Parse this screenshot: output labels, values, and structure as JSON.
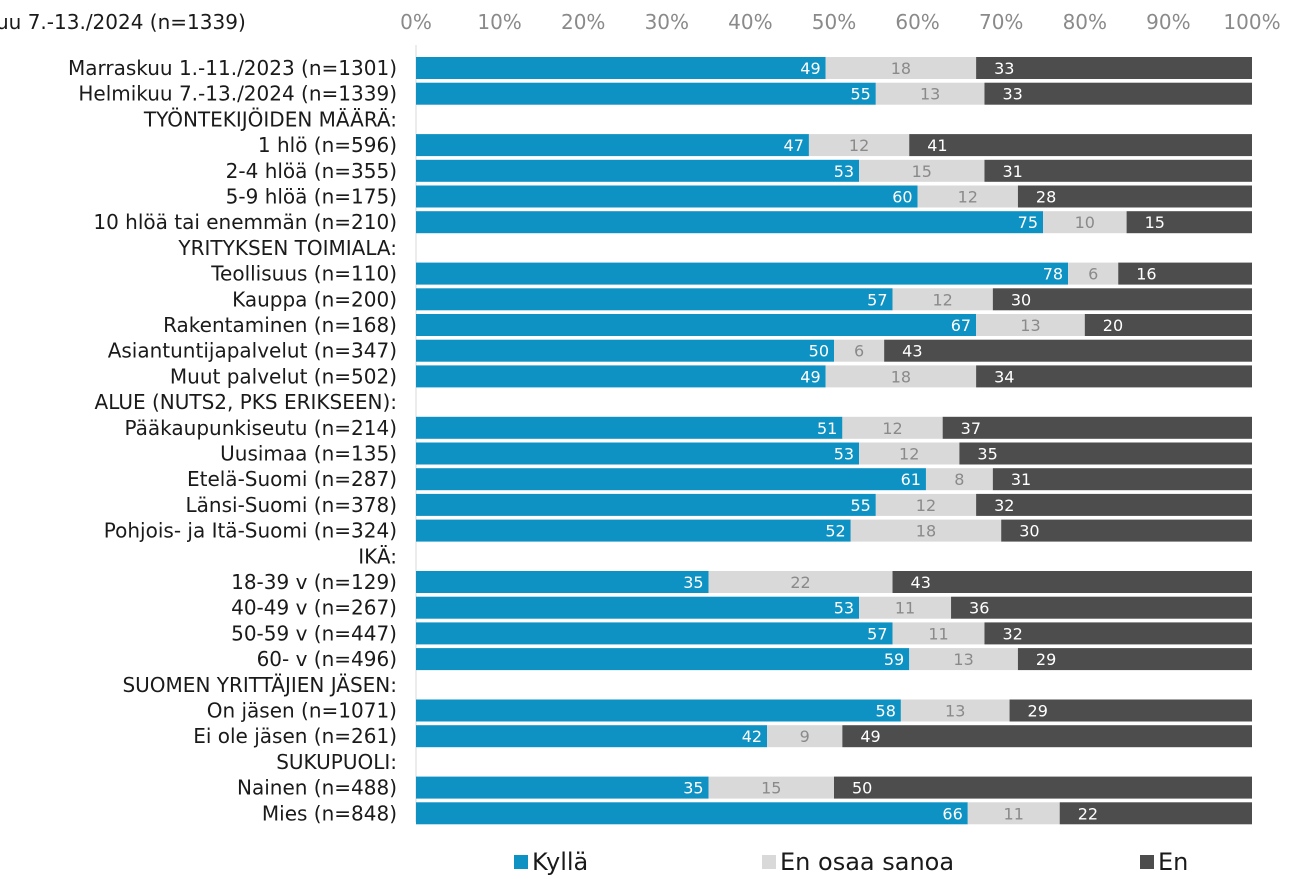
{
  "header": {
    "cut_label": "uu  7.-13./2024 (n=1339)"
  },
  "chart_data": {
    "type": "bar",
    "orientation": "horizontal",
    "stacked": true,
    "xlim": [
      0,
      100
    ],
    "xticks": [
      "0%",
      "10%",
      "20%",
      "30%",
      "40%",
      "50%",
      "60%",
      "70%",
      "80%",
      "90%",
      "100%"
    ],
    "legend_position": "bottom",
    "colors": {
      "Kyllä": "#0e91c3",
      "En osaa sanoa": "#d9d9d9",
      "En": "#4d4d4d"
    },
    "series": [
      {
        "name": "Kyllä"
      },
      {
        "name": "En osaa sanoa"
      },
      {
        "name": "En"
      }
    ],
    "rows": [
      {
        "label": "Marraskuu 1.-11./2023 (n=1301)",
        "values": [
          49,
          18,
          33
        ]
      },
      {
        "label": "Helmikuu 7.-13./2024 (n=1339)",
        "values": [
          55,
          13,
          33
        ]
      },
      {
        "label": "TYÖNTEKIJÖIDEN MÄÄRÄ:",
        "header": true
      },
      {
        "label": "1 hlö (n=596)",
        "values": [
          47,
          12,
          41
        ]
      },
      {
        "label": "2-4 hlöä (n=355)",
        "values": [
          53,
          15,
          31
        ]
      },
      {
        "label": "5-9 hlöä (n=175)",
        "values": [
          60,
          12,
          28
        ]
      },
      {
        "label": "10 hlöä tai enemmän (n=210)",
        "values": [
          75,
          10,
          15
        ]
      },
      {
        "label": "YRITYKSEN TOIMIALA:",
        "header": true
      },
      {
        "label": "Teollisuus (n=110)",
        "values": [
          78,
          6,
          16
        ]
      },
      {
        "label": "Kauppa (n=200)",
        "values": [
          57,
          12,
          30
        ]
      },
      {
        "label": "Rakentaminen (n=168)",
        "values": [
          67,
          13,
          20
        ]
      },
      {
        "label": "Asiantuntijapalvelut (n=347)",
        "values": [
          50,
          6,
          43
        ]
      },
      {
        "label": "Muut palvelut (n=502)",
        "values": [
          49,
          18,
          34
        ]
      },
      {
        "label": "ALUE (NUTS2, PKS ERIKSEEN):",
        "header": true
      },
      {
        "label": "Pääkaupunkiseutu (n=214)",
        "values": [
          51,
          12,
          37
        ]
      },
      {
        "label": "Uusimaa (n=135)",
        "values": [
          53,
          12,
          35
        ]
      },
      {
        "label": "Etelä-Suomi (n=287)",
        "values": [
          61,
          8,
          31
        ]
      },
      {
        "label": "Länsi-Suomi (n=378)",
        "values": [
          55,
          12,
          32
        ]
      },
      {
        "label": "Pohjois- ja Itä-Suomi (n=324)",
        "values": [
          52,
          18,
          30
        ]
      },
      {
        "label": "IKÄ:",
        "header": true
      },
      {
        "label": "18-39 v (n=129)",
        "values": [
          35,
          22,
          43
        ]
      },
      {
        "label": "40-49 v (n=267)",
        "values": [
          53,
          11,
          36
        ]
      },
      {
        "label": "50-59 v (n=447)",
        "values": [
          57,
          11,
          32
        ]
      },
      {
        "label": "60- v (n=496)",
        "values": [
          59,
          13,
          29
        ]
      },
      {
        "label": "SUOMEN YRITTÄJIEN JÄSEN:",
        "header": true
      },
      {
        "label": "On jäsen (n=1071)",
        "values": [
          58,
          13,
          29
        ]
      },
      {
        "label": "Ei ole jäsen (n=261)",
        "values": [
          42,
          9,
          49
        ]
      },
      {
        "label": "SUKUPUOLI:",
        "header": true
      },
      {
        "label": "Nainen (n=488)",
        "values": [
          35,
          15,
          50
        ]
      },
      {
        "label": "Mies (n=848)",
        "values": [
          66,
          11,
          22
        ]
      }
    ]
  }
}
